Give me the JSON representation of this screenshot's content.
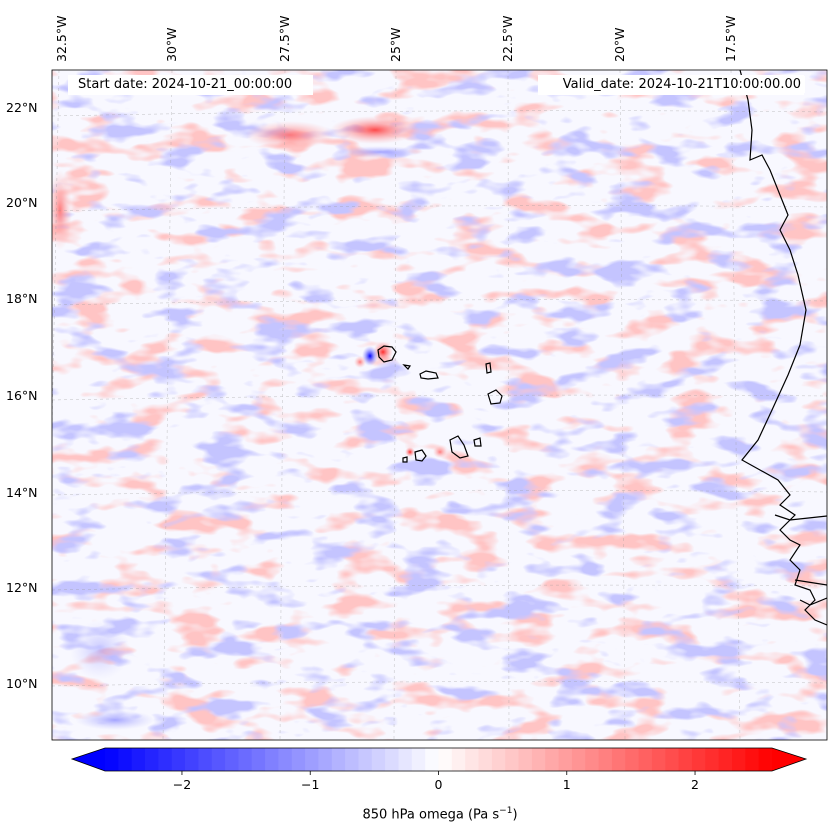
{
  "header": {
    "start_date": "Start date: 2024-10-21_00:00:00",
    "valid_date": "Valid_date: 2024-10-21T10:00:00.00"
  },
  "map": {
    "lon_labels": [
      "32.5°W",
      "30°W",
      "27.5°W",
      "25°W",
      "22.5°W",
      "20°W",
      "17.5°W"
    ],
    "lat_labels": [
      "22°N",
      "20°N",
      "18°N",
      "16°N",
      "14°N",
      "12°N",
      "10°N"
    ],
    "colormap": "bwr",
    "negative_color": "#0000ff",
    "positive_color": "#ff0000"
  },
  "colorbar": {
    "ticks": [
      "−2",
      "−1",
      "0",
      "1",
      "2"
    ],
    "tick_values": [
      -2,
      -1,
      0,
      1,
      2
    ],
    "range": [
      -2.6,
      2.6
    ],
    "label": "850 hPa omega (Pa s",
    "label_sup": "−1",
    "label_end": ")"
  }
}
